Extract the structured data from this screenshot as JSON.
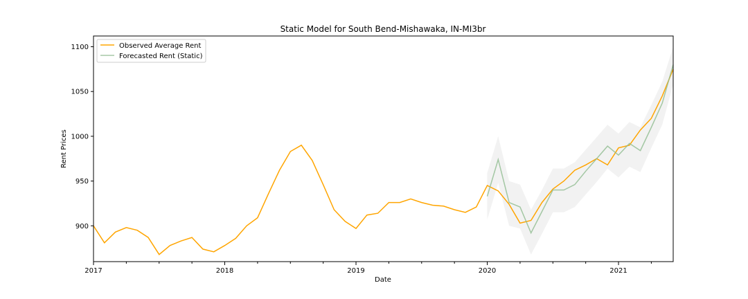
{
  "chart_data": {
    "type": "line",
    "title": "Static Model for South Bend-Mishawaka, IN-MI3br",
    "xlabel": "Date",
    "ylabel": "Rent Prices",
    "xlim": [
      "2017-01",
      "2021-06"
    ],
    "ylim": [
      860,
      1112
    ],
    "x_ticks": [
      "2017",
      "2018",
      "2019",
      "2020",
      "2021"
    ],
    "y_ticks": [
      900,
      950,
      1000,
      1050,
      1100
    ],
    "grid": false,
    "legend_position": "top-left",
    "series": [
      {
        "name": "Observed Average Rent",
        "color": "#ffa500",
        "x": [
          "2017-01",
          "2017-02",
          "2017-03",
          "2017-04",
          "2017-05",
          "2017-06",
          "2017-07",
          "2017-08",
          "2017-09",
          "2017-10",
          "2017-11",
          "2017-12",
          "2018-01",
          "2018-02",
          "2018-03",
          "2018-04",
          "2018-05",
          "2018-06",
          "2018-07",
          "2018-08",
          "2018-09",
          "2018-10",
          "2018-11",
          "2018-12",
          "2019-01",
          "2019-02",
          "2019-03",
          "2019-04",
          "2019-05",
          "2019-06",
          "2019-07",
          "2019-08",
          "2019-09",
          "2019-10",
          "2019-11",
          "2019-12",
          "2020-01",
          "2020-02",
          "2020-03",
          "2020-04",
          "2020-05",
          "2020-06",
          "2020-07",
          "2020-08",
          "2020-09",
          "2020-10",
          "2020-11",
          "2020-12",
          "2021-01",
          "2021-02",
          "2021-03",
          "2021-04",
          "2021-05",
          "2021-06"
        ],
        "values": [
          900,
          881,
          893,
          898,
          895,
          887,
          868,
          878,
          883,
          887,
          874,
          871,
          878,
          886,
          900,
          909,
          936,
          962,
          983,
          990,
          973,
          946,
          918,
          905,
          897,
          912,
          914,
          926,
          926,
          930,
          926,
          923,
          922,
          918,
          915,
          921,
          945,
          939,
          924,
          903,
          906,
          926,
          941,
          950,
          962,
          968,
          975,
          968,
          987,
          990,
          1007,
          1020,
          1045,
          1075
        ]
      },
      {
        "name": "Forecasted Rent (Static)",
        "color": "#8fbc8f",
        "x": [
          "2020-01",
          "2020-02",
          "2020-03",
          "2020-04",
          "2020-05",
          "2020-06",
          "2020-07",
          "2020-08",
          "2020-09",
          "2020-10",
          "2020-11",
          "2020-12",
          "2021-01",
          "2021-02",
          "2021-03",
          "2021-04",
          "2021-05",
          "2021-06"
        ],
        "values": [
          933,
          974,
          926,
          921,
          892,
          916,
          940,
          940,
          946,
          961,
          975,
          989,
          979,
          992,
          984,
          1010,
          1037,
          1080
        ],
        "lower": [
          907,
          948,
          900,
          897,
          868,
          891,
          915,
          915,
          921,
          935,
          949,
          964,
          954,
          966,
          960,
          987,
          1013,
          1058
        ],
        "upper": [
          959,
          1000,
          950,
          946,
          918,
          940,
          964,
          964,
          971,
          985,
          999,
          1013,
          1003,
          1016,
          1010,
          1035,
          1061,
          1100
        ]
      }
    ]
  }
}
